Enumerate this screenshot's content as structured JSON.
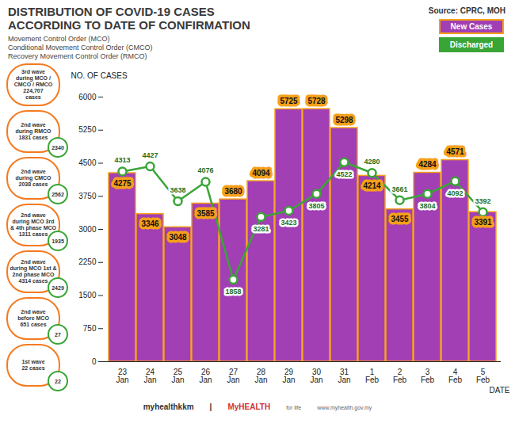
{
  "chart_data": {
    "type": "bar",
    "title": [
      "DISTRIBUTION OF COVID-19 CASES",
      "ACCORDING TO DATE OF CONFIRMATION"
    ],
    "subtitle": [
      "Movement Control Order (MCO)",
      "Conditional Movement Control Order (CMCO)",
      "Recovery Movement Control Order (RMCO)"
    ],
    "source": "Source: CPRC, MOH",
    "x_label": "DATE",
    "y_label": "NO. OF CASES",
    "categories": [
      "23 Jan",
      "24 Jan",
      "25 Jan",
      "26 Jan",
      "27 Jan",
      "28 Jan",
      "29 Jan",
      "30 Jan",
      "31 Jan",
      "1 Feb",
      "2 Feb",
      "3 Feb",
      "4 Feb",
      "5 Feb"
    ],
    "series": [
      {
        "name": "New Cases",
        "type": "bar",
        "color": "#a23fb4",
        "values": [
          4275,
          3346,
          3048,
          3585,
          3680,
          4094,
          5725,
          5728,
          5298,
          4214,
          3455,
          4284,
          4571,
          3391
        ]
      },
      {
        "name": "Discharged",
        "type": "line",
        "color": "#3aa537",
        "marker": "circle",
        "values": [
          4313,
          4427,
          3638,
          4076,
          1858,
          3281,
          3423,
          3805,
          4522,
          4280,
          3661,
          3804,
          4092,
          3392
        ]
      }
    ],
    "ylim": [
      0,
      6000
    ],
    "yticks": [
      0,
      750,
      1500,
      2250,
      3000,
      3750,
      4500,
      5250,
      6000
    ],
    "grid": false,
    "legend": "top-right",
    "data_labels": true,
    "annotations": [
      {
        "text": [
          "3rd wave",
          "during MCO /",
          "CMCO / RMCO",
          "224,707",
          "cases"
        ],
        "discharged": null
      },
      {
        "text": [
          "2nd wave",
          "during RMCO",
          "1831 cases"
        ],
        "discharged": 2340
      },
      {
        "text": [
          "2nd wave",
          "during CMCO",
          "2038 cases"
        ],
        "discharged": 2562
      },
      {
        "text": [
          "2nd wave",
          "during MCO 3rd",
          "& 4th phase MCO",
          "1311 cases"
        ],
        "discharged": 1935
      },
      {
        "text": [
          "2nd wave",
          "during MCO 1st &",
          "2nd phase MCO",
          "4314 cases"
        ],
        "discharged": 2429
      },
      {
        "text": [
          "2nd wave",
          "before MCO",
          "651 cases"
        ],
        "discharged": 27
      },
      {
        "text": [
          "1st wave",
          "22 cases"
        ],
        "discharged": 22
      }
    ],
    "footer": [
      "myhealthkkm",
      "|",
      "MyHEALTH",
      "for life",
      "www.myhealth.gov.my"
    ]
  }
}
